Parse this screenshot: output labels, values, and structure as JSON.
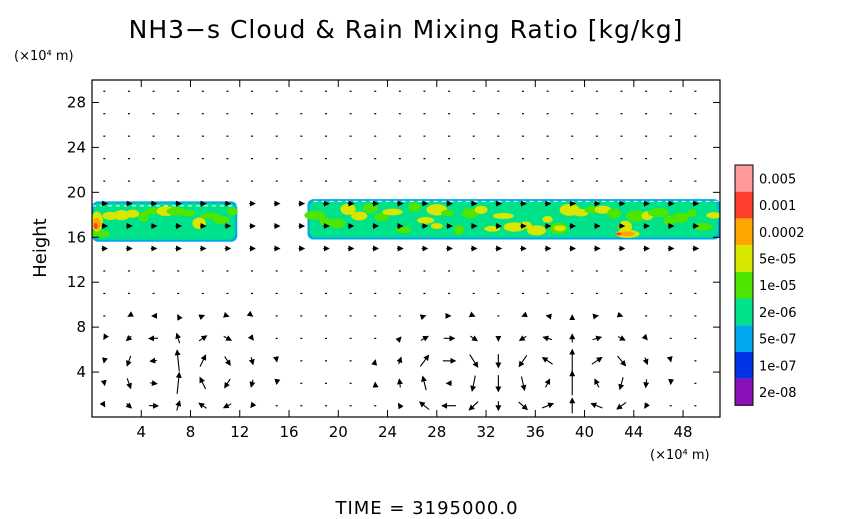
{
  "chart_data": {
    "type": "heatmap",
    "title": "NH3−s Cloud & Rain Mixing Ratio [kg/kg]",
    "ylabel": "Height",
    "x_unit": "(×10⁴ m)",
    "y_unit": "(×10⁴ m)",
    "time_label": "TIME  =  3195000.0",
    "xlim": [
      0,
      51
    ],
    "ylim": [
      0,
      30
    ],
    "x_ticks": [
      4,
      8,
      12,
      16,
      20,
      24,
      28,
      32,
      36,
      40,
      44,
      48
    ],
    "y_ticks": [
      4,
      8,
      12,
      16,
      20,
      24,
      28
    ],
    "colorbar": {
      "labels": [
        "0.005",
        "0.001",
        "0.0002",
        "5e-05",
        "1e-05",
        "2e-06",
        "5e-07",
        "1e-07",
        "2e-08"
      ],
      "colors": [
        "#ff9a9a",
        "#ff3f2e",
        "#ffa600",
        "#d8e600",
        "#4ee600",
        "#00e28a",
        "#00a8f0",
        "#0032e6",
        "#8a10b8"
      ]
    },
    "cloud_patches": [
      {
        "x": [
          0,
          11.8
        ],
        "y": [
          15.6,
          19.2
        ],
        "peak": "5e-05"
      },
      {
        "x": [
          17.5,
          51
        ],
        "y": [
          15.8,
          19.4
        ],
        "peak": "0.0002"
      }
    ],
    "wind_field": "vector arrows on regular grid; strong circulations below 8 near x=6, 9, 29, 37, 41"
  },
  "labels": {
    "title": "NH3−s Cloud & Rain Mixing Ratio [kg/kg]",
    "ylabel": "Height",
    "x_unit": "(×10⁴ m)",
    "y_unit": "(×10⁴ m)",
    "time": "TIME  =  3195000.0"
  }
}
